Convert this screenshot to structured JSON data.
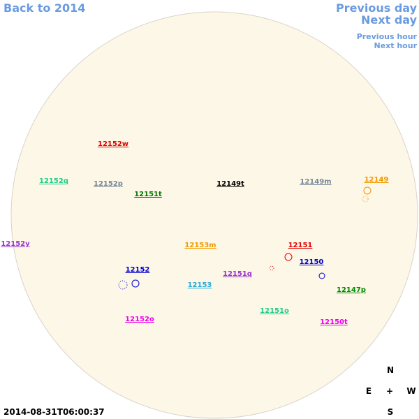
{
  "nav": {
    "back": "Back to 2014",
    "previous_day": "Previous day",
    "next_day": "Next day",
    "previous_hour": "Previous hour",
    "next_hour": "Next hour"
  },
  "regions": [
    {
      "label": "12152w",
      "color": "#e00000"
    },
    {
      "label": "12152q",
      "color": "#22cc88"
    },
    {
      "label": "12152p",
      "color": "#778899"
    },
    {
      "label": "12151t",
      "color": "#007700"
    },
    {
      "label": "12149t",
      "color": "#000000"
    },
    {
      "label": "12149m",
      "color": "#778899"
    },
    {
      "label": "12149",
      "color": "#ee9900"
    },
    {
      "label": "12152y",
      "color": "#9933cc"
    },
    {
      "label": "12153m",
      "color": "#ee9900"
    },
    {
      "label": "12151",
      "color": "#e00000"
    },
    {
      "label": "12150",
      "color": "#0000cc"
    },
    {
      "label": "12152",
      "color": "#0000cc"
    },
    {
      "label": "12151q",
      "color": "#9933cc"
    },
    {
      "label": "12153",
      "color": "#22aadd"
    },
    {
      "label": "12147p",
      "color": "#008800"
    },
    {
      "label": "12151o",
      "color": "#22cc88"
    },
    {
      "label": "12152o",
      "color": "#ee00ee"
    },
    {
      "label": "12150t",
      "color": "#ee00ee"
    }
  ],
  "timestamp": "2014-08-31T06:00:37",
  "compass": {
    "north": "N",
    "east": "E",
    "center": "+",
    "west": "W",
    "south": "S"
  }
}
